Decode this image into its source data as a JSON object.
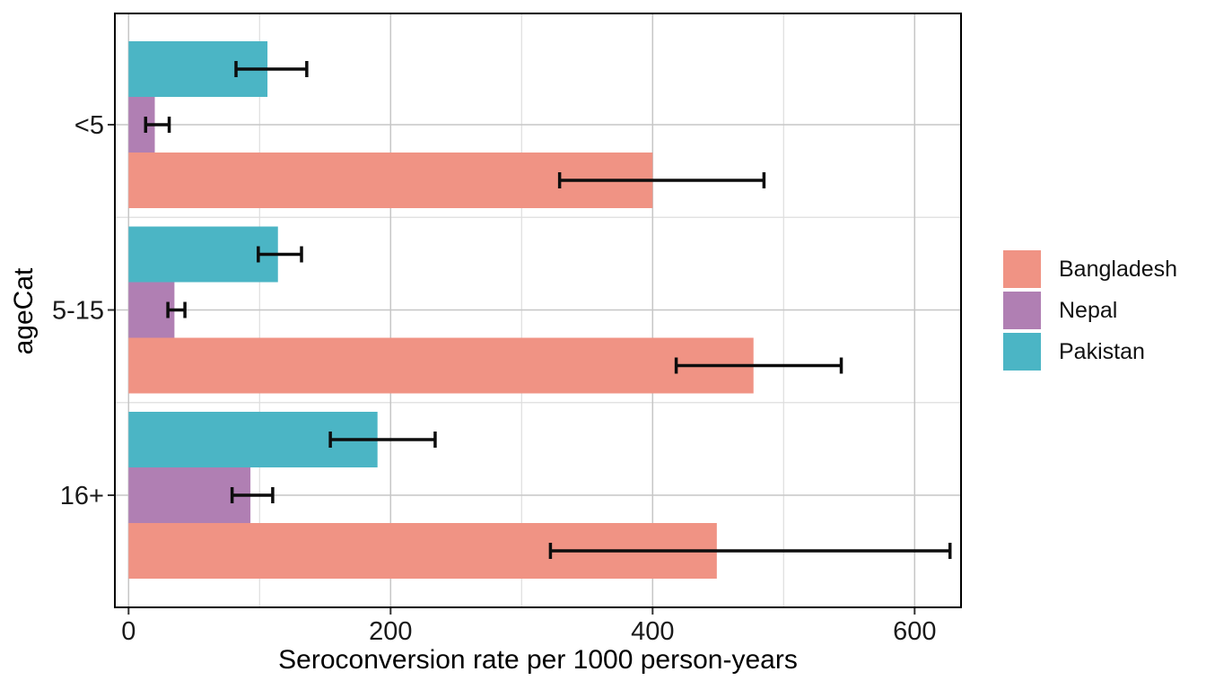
{
  "chart_data": {
    "type": "bar",
    "orientation": "horizontal",
    "title": "",
    "xlabel": "Seroconversion rate per 1000 person-years",
    "ylabel": "ageCat",
    "categories": [
      "<5",
      "5-15",
      "16+"
    ],
    "x_ticks": [
      0,
      200,
      400,
      600
    ],
    "x_minor_gridlines": [
      100,
      300,
      500
    ],
    "xlim": [
      -10,
      635
    ],
    "grid": true,
    "legend_position": "right",
    "error_bars": true,
    "series": [
      {
        "name": "Bangladesh",
        "color": "#F09384",
        "values": [
          400,
          477,
          449
        ],
        "ci_low": [
          329,
          418,
          322
        ],
        "ci_high": [
          485,
          544,
          627
        ]
      },
      {
        "name": "Nepal",
        "color": "#B07FB3",
        "values": [
          20,
          35,
          93
        ],
        "ci_low": [
          13,
          30,
          79
        ],
        "ci_high": [
          31,
          43,
          110
        ]
      },
      {
        "name": "Pakistan",
        "color": "#4BB5C5",
        "values": [
          106,
          114,
          190
        ],
        "ci_low": [
          82,
          99,
          154
        ],
        "ci_high": [
          136,
          132,
          234
        ]
      }
    ],
    "colors": {
      "grid_major": "#C6C6C6",
      "grid_minor": "#DEDEDE",
      "panel_border": "#000000",
      "error_bar": "#0d0d0d",
      "tick_text": "#1a1a1a"
    }
  }
}
